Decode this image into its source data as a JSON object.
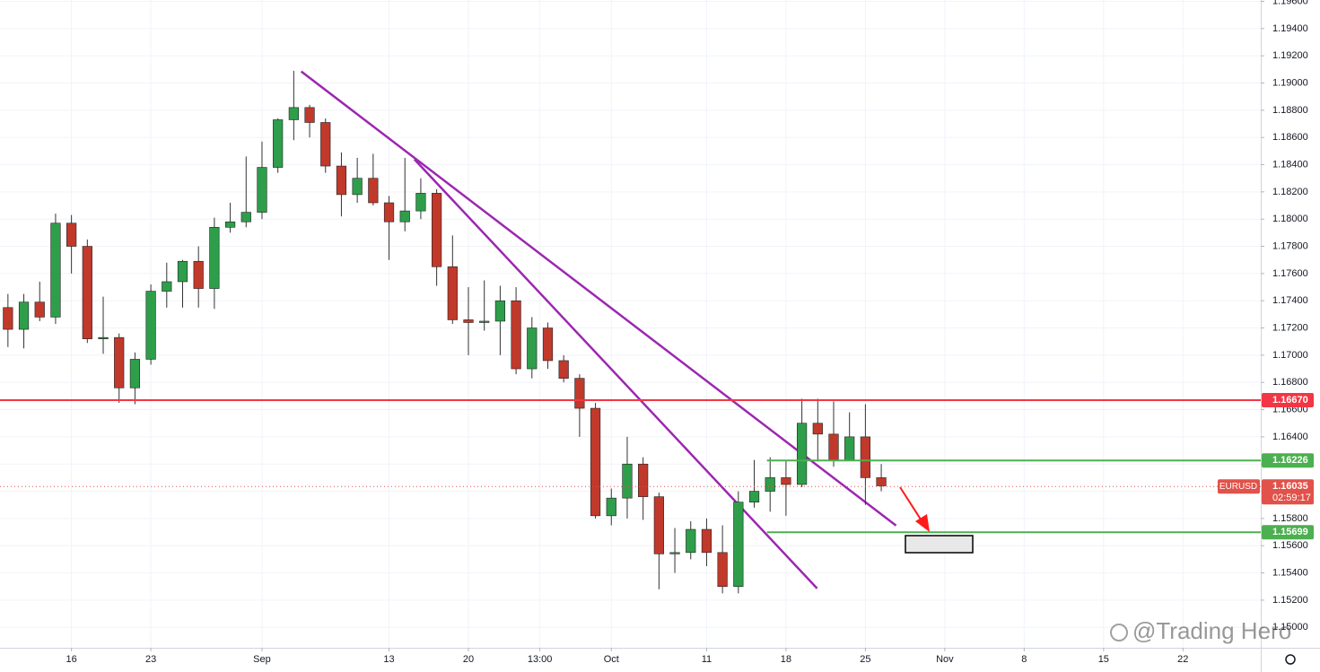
{
  "chart_data": {
    "type": "candlestick",
    "symbol": "EURUSD",
    "open": [
      1.1735,
      1.1719,
      1.1739,
      1.1728,
      1.1797,
      1.178,
      1.1712,
      1.1713,
      1.1676,
      1.1697,
      1.1747,
      1.1754,
      1.1769,
      1.1749,
      1.1794,
      1.1798,
      1.1805,
      1.1838,
      1.1873,
      1.1882,
      1.1871,
      1.1839,
      1.1818,
      1.183,
      1.1812,
      1.1798,
      1.1806,
      1.1819,
      1.1765,
      1.1726,
      1.1724,
      1.1725,
      1.174,
      1.169,
      1.172,
      1.1696,
      1.1683,
      1.1661,
      1.1582,
      1.1595,
      1.162,
      1.1596,
      1.1554,
      1.1555,
      1.1572,
      1.1555,
      1.153,
      1.1592,
      1.16,
      1.161,
      1.1605,
      1.165,
      1.1642,
      1.1623,
      1.164,
      1.161
    ],
    "high": [
      1.1745,
      1.1745,
      1.1754,
      1.1804,
      1.1803,
      1.1785,
      1.1743,
      1.1716,
      1.1702,
      1.1752,
      1.1768,
      1.177,
      1.178,
      1.1801,
      1.1812,
      1.1846,
      1.1857,
      1.1874,
      1.1909,
      1.1884,
      1.1874,
      1.1849,
      1.1845,
      1.1848,
      1.1817,
      1.1845,
      1.183,
      1.1822,
      1.1788,
      1.175,
      1.1755,
      1.1751,
      1.175,
      1.1728,
      1.1724,
      1.17,
      1.1686,
      1.1665,
      1.1602,
      1.164,
      1.1625,
      1.1599,
      1.1573,
      1.1578,
      1.158,
      1.1575,
      1.16,
      1.1623,
      1.1625,
      1.1622,
      1.1668,
      1.1668,
      1.1666,
      1.1658,
      1.1664,
      1.162
    ],
    "low": [
      1.1706,
      1.1705,
      1.1725,
      1.1723,
      1.176,
      1.1709,
      1.1701,
      1.1665,
      1.1664,
      1.1693,
      1.1735,
      1.1735,
      1.1735,
      1.1734,
      1.179,
      1.1794,
      1.18,
      1.1834,
      1.1858,
      1.186,
      1.1834,
      1.1802,
      1.1812,
      1.181,
      1.177,
      1.1791,
      1.18,
      1.1751,
      1.1723,
      1.17,
      1.1718,
      1.17,
      1.1686,
      1.1683,
      1.169,
      1.168,
      1.164,
      1.158,
      1.1575,
      1.158,
      1.1579,
      1.1528,
      1.154,
      1.155,
      1.1545,
      1.1525,
      1.1525,
      1.1588,
      1.1585,
      1.1582,
      1.1603,
      1.1622,
      1.1618,
      1.1623,
      1.159,
      1.16
    ],
    "close": [
      1.1719,
      1.1739,
      1.1728,
      1.1797,
      1.178,
      1.1712,
      1.1713,
      1.1676,
      1.1697,
      1.1747,
      1.1754,
      1.1769,
      1.1749,
      1.1794,
      1.1798,
      1.1805,
      1.1838,
      1.1873,
      1.1882,
      1.1871,
      1.1839,
      1.1818,
      1.183,
      1.1812,
      1.1798,
      1.1806,
      1.1819,
      1.1765,
      1.1726,
      1.1724,
      1.1725,
      1.174,
      1.169,
      1.172,
      1.1696,
      1.1683,
      1.1661,
      1.1582,
      1.1595,
      1.162,
      1.1596,
      1.1554,
      1.1555,
      1.1572,
      1.1555,
      1.153,
      1.1592,
      1.16,
      1.161,
      1.1605,
      1.165,
      1.1642,
      1.1623,
      1.164,
      1.161,
      1.1604
    ],
    "up_color": "#2e9e4a",
    "down_color": "#c0392b",
    "xlim": [
      -0.5,
      78.9
    ],
    "xticks": [
      {
        "value": 4,
        "label": "16"
      },
      {
        "value": 9,
        "label": "23"
      },
      {
        "value": 16,
        "label": "Sep"
      },
      {
        "value": 24,
        "label": "13"
      },
      {
        "value": 29,
        "label": "20"
      },
      {
        "value": 33.5,
        "label": "13:00"
      },
      {
        "value": 38,
        "label": "Oct"
      },
      {
        "value": 44,
        "label": "11"
      },
      {
        "value": 49,
        "label": "18"
      },
      {
        "value": 54,
        "label": "25"
      },
      {
        "value": 59,
        "label": "Nov"
      },
      {
        "value": 64,
        "label": "8"
      },
      {
        "value": 69,
        "label": "15"
      },
      {
        "value": 74,
        "label": "22"
      }
    ],
    "ylim": [
      1.1485,
      1.1961
    ],
    "yticks": [
      {
        "value": 1.196,
        "label": "1.19600"
      },
      {
        "value": 1.194,
        "label": "1.19400"
      },
      {
        "value": 1.192,
        "label": "1.19200"
      },
      {
        "value": 1.19,
        "label": "1.19000"
      },
      {
        "value": 1.188,
        "label": "1.18800"
      },
      {
        "value": 1.186,
        "label": "1.18600"
      },
      {
        "value": 1.184,
        "label": "1.18400"
      },
      {
        "value": 1.182,
        "label": "1.18200"
      },
      {
        "value": 1.18,
        "label": "1.18000"
      },
      {
        "value": 1.178,
        "label": "1.17800"
      },
      {
        "value": 1.176,
        "label": "1.17600"
      },
      {
        "value": 1.174,
        "label": "1.17400"
      },
      {
        "value": 1.172,
        "label": "1.17200"
      },
      {
        "value": 1.17,
        "label": "1.17000"
      },
      {
        "value": 1.168,
        "label": "1.16800"
      },
      {
        "value": 1.166,
        "label": "1.16600"
      },
      {
        "value": 1.164,
        "label": "1.16400"
      },
      {
        "value": 1.162,
        "label": "1.16200"
      },
      {
        "value": 1.16,
        "label": "1.16000"
      },
      {
        "value": 1.158,
        "label": "1.15800"
      },
      {
        "value": 1.156,
        "label": "1.15600"
      },
      {
        "value": 1.154,
        "label": "1.15400"
      },
      {
        "value": 1.152,
        "label": "1.15200"
      },
      {
        "value": 1.15,
        "label": "1.15000"
      }
    ],
    "grid": true,
    "levels": [
      {
        "value": 1.1667,
        "label": "1.16670",
        "color": "#f23645"
      },
      {
        "value": 1.16226,
        "label": "1.16226",
        "color": "#4caf50"
      },
      {
        "value": 1.15699,
        "label": "1.15699",
        "color": "#4caf50"
      }
    ],
    "last_price": {
      "value": 1.16035,
      "label": "1.16035",
      "countdown": "02:59:17",
      "color": "#e0524a"
    },
    "trendlines": [
      {
        "x": [
          18.47,
          55.93
        ],
        "y": [
          1.19085,
          1.15748
        ]
      },
      {
        "x": [
          25.6,
          50.96
        ],
        "y": [
          1.18439,
          1.15286
        ]
      }
    ],
    "trendline_color": "#9c27b0",
    "watermark": "@Trading Hero"
  }
}
